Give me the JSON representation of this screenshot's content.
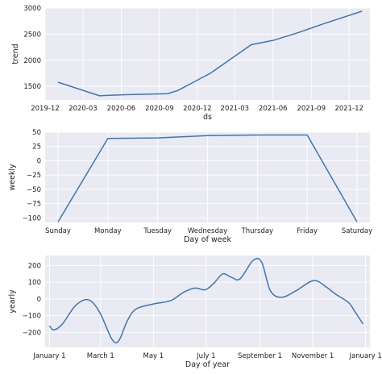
{
  "colors": {
    "line": "#3a78b5",
    "panel_bg": "#eaeaf2",
    "grid": "#ffffff"
  },
  "chart_data": [
    {
      "type": "line",
      "ylabel": "trend",
      "xlabel": "ds",
      "grid": true,
      "x_kind": "date",
      "xlim": [
        "2019-12-01",
        "2022-01-20"
      ],
      "ylim": [
        1240,
        3000
      ],
      "xticks": [
        {
          "at": "2019-12-01",
          "label": "2019-12"
        },
        {
          "at": "2020-03-01",
          "label": "2020-03"
        },
        {
          "at": "2020-06-01",
          "label": "2020-06"
        },
        {
          "at": "2020-09-01",
          "label": "2020-09"
        },
        {
          "at": "2020-12-01",
          "label": "2020-12"
        },
        {
          "at": "2021-03-01",
          "label": "2021-03"
        },
        {
          "at": "2021-06-01",
          "label": "2021-06"
        },
        {
          "at": "2021-09-01",
          "label": "2021-09"
        },
        {
          "at": "2021-12-01",
          "label": "2021-12"
        }
      ],
      "yticks": [
        1500,
        2000,
        2500,
        3000
      ],
      "x": [
        "2020-01-01",
        "2020-04-10",
        "2020-06-10",
        "2020-09-20",
        "2020-10-15",
        "2021-01-01",
        "2021-04-10",
        "2021-06-01",
        "2021-08-01",
        "2021-10-01",
        "2022-01-01"
      ],
      "y": [
        1580,
        1320,
        1340,
        1360,
        1420,
        1750,
        2300,
        2380,
        2530,
        2700,
        2940
      ]
    },
    {
      "type": "line",
      "ylabel": "weekly",
      "xlabel": "Day of week",
      "grid": true,
      "x_kind": "category",
      "categories": [
        "Sunday",
        "Monday",
        "Tuesday",
        "Wednesday",
        "Thursday",
        "Friday",
        "Saturday"
      ],
      "ylim": [
        -108,
        50
      ],
      "yticks": [
        50,
        25,
        0,
        -25,
        -50,
        -75,
        -100
      ],
      "values": [
        -107,
        39,
        40,
        44,
        45,
        45,
        -107
      ]
    },
    {
      "type": "line",
      "ylabel": "yearly",
      "xlabel": "Day of year",
      "grid": true,
      "x_kind": "day_of_year",
      "xlim": [
        -5,
        370
      ],
      "ylim": [
        -290,
        260
      ],
      "xticks": [
        {
          "at": 0,
          "label": "January 1"
        },
        {
          "at": 59,
          "label": "March 1"
        },
        {
          "at": 120,
          "label": "May 1"
        },
        {
          "at": 181,
          "label": "July 1"
        },
        {
          "at": 243,
          "label": "September 1"
        },
        {
          "at": 304,
          "label": "November 1"
        },
        {
          "at": 365,
          "label": "January 1"
        }
      ],
      "yticks": [
        200,
        100,
        0,
        -100,
        -200
      ],
      "x": [
        0,
        5,
        15,
        30,
        45,
        58,
        72,
        80,
        90,
        100,
        120,
        140,
        155,
        168,
        180,
        190,
        200,
        210,
        220,
        235,
        245,
        255,
        268,
        285,
        305,
        320,
        330,
        345,
        352,
        362
      ],
      "y": [
        -160,
        -185,
        -150,
        -40,
        -5,
        -80,
        -240,
        -250,
        -130,
        -60,
        -30,
        -10,
        40,
        65,
        55,
        95,
        150,
        130,
        120,
        230,
        220,
        50,
        10,
        50,
        110,
        70,
        30,
        -20,
        -70,
        -150
      ]
    }
  ]
}
